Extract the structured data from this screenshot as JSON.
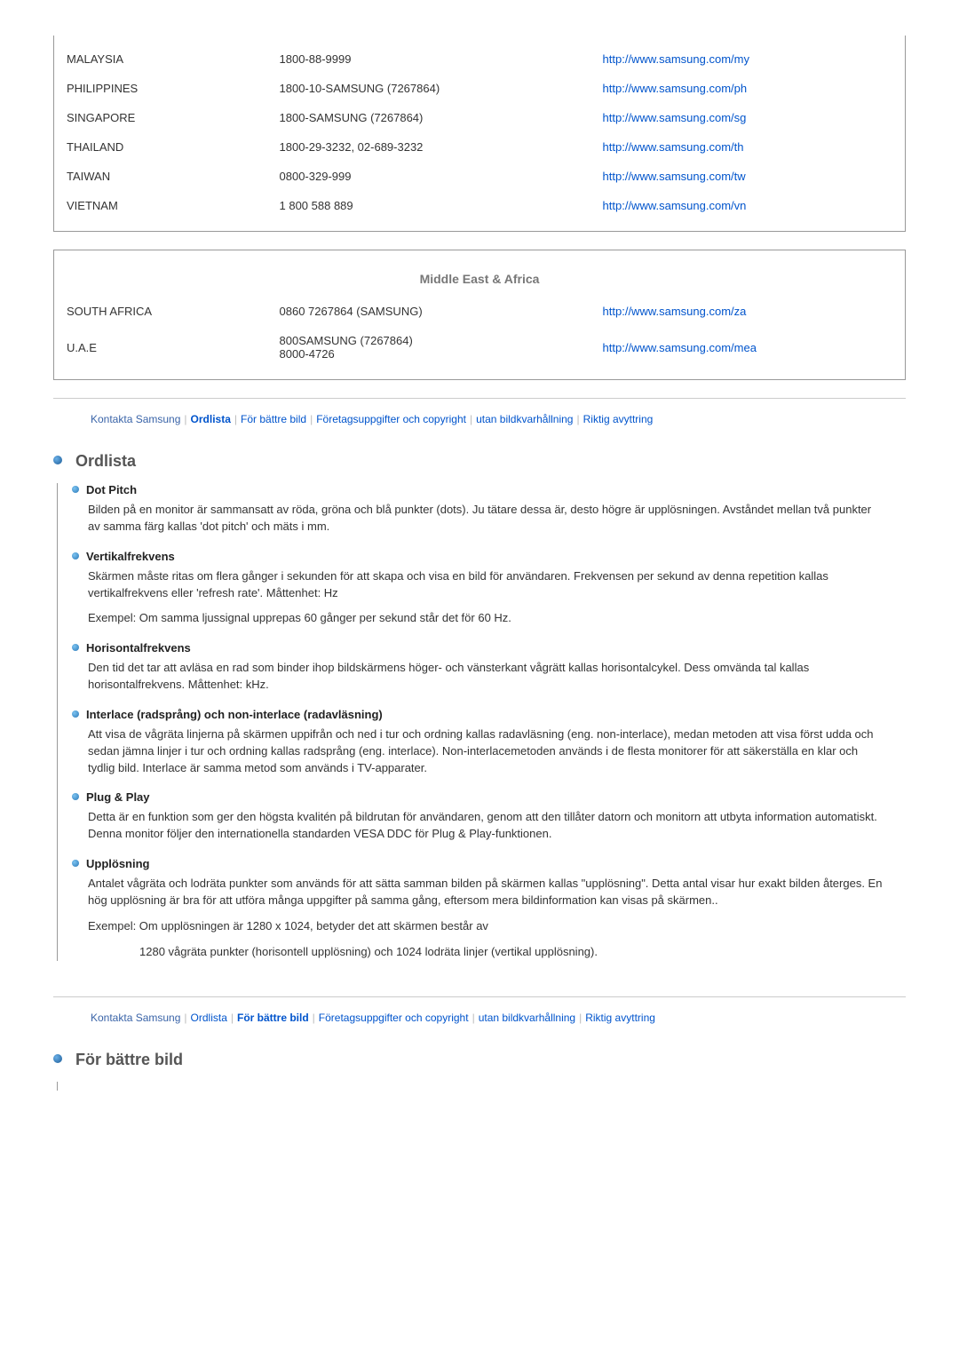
{
  "asia_rows": [
    {
      "country": "MALAYSIA",
      "phone": "1800-88-9999",
      "url": "http://www.samsung.com/my"
    },
    {
      "country": "PHILIPPINES",
      "phone": "1800-10-SAMSUNG (7267864)",
      "url": "http://www.samsung.com/ph"
    },
    {
      "country": "SINGAPORE",
      "phone": "1800-SAMSUNG (7267864)",
      "url": "http://www.samsung.com/sg"
    },
    {
      "country": "THAILAND",
      "phone": "1800-29-3232, 02-689-3232",
      "url": "http://www.samsung.com/th"
    },
    {
      "country": "TAIWAN",
      "phone": "0800-329-999",
      "url": "http://www.samsung.com/tw"
    },
    {
      "country": "VIETNAM",
      "phone": "1 800 588 889",
      "url": "http://www.samsung.com/vn"
    }
  ],
  "mea_header": "Middle East & Africa",
  "mea_rows": [
    {
      "country": "SOUTH AFRICA",
      "phone": "0860 7267864 (SAMSUNG)",
      "url": "http://www.samsung.com/za"
    },
    {
      "country": "U.A.E",
      "phone": "800SAMSUNG (7267864)\n8000-4726",
      "url": "http://www.samsung.com/mea"
    }
  ],
  "nav1": {
    "items": [
      {
        "label": "Kontakta Samsung",
        "cls": "nav-plain"
      },
      {
        "label": "Ordlista",
        "cls": "nav-active"
      },
      {
        "label": "För bättre bild",
        "cls": "nav-normal"
      },
      {
        "label": "Företagsuppgifter och copyright",
        "cls": "nav-normal"
      },
      {
        "label": "utan bildkvarhållning",
        "cls": "nav-normal"
      },
      {
        "label": "Riktig avyttring",
        "cls": "nav-normal"
      }
    ]
  },
  "nav2": {
    "items": [
      {
        "label": "Kontakta Samsung",
        "cls": "nav-plain"
      },
      {
        "label": "Ordlista",
        "cls": "nav-normal"
      },
      {
        "label": "För bättre bild",
        "cls": "nav-active"
      },
      {
        "label": "Företagsuppgifter och copyright",
        "cls": "nav-normal"
      },
      {
        "label": "utan bildkvarhållning",
        "cls": "nav-normal"
      },
      {
        "label": "Riktig avyttring",
        "cls": "nav-normal"
      }
    ]
  },
  "section_ordlista": {
    "title": "Ordlista",
    "terms": [
      {
        "title": "Dot Pitch",
        "paras": [
          "Bilden på en monitor är sammansatt av röda, gröna och blå punkter (dots). Ju tätare dessa är, desto högre är upplösningen. Avståndet mellan två punkter av samma färg kallas 'dot pitch' och mäts i mm."
        ]
      },
      {
        "title": "Vertikalfrekvens",
        "paras": [
          "Skärmen måste ritas om flera gånger i sekunden för att skapa och visa en bild för användaren. Frekvensen per sekund av denna repetition kallas vertikalfrekvens eller 'refresh rate'. Måttenhet: Hz",
          "Exempel: Om samma ljussignal upprepas 60 gånger per sekund står det för 60 Hz."
        ]
      },
      {
        "title": "Horisontalfrekvens",
        "paras": [
          "Den tid det tar att avläsa en rad som binder ihop bildskärmens höger- och vänsterkant vågrätt kallas horisontalcykel. Dess omvända tal kallas horisontalfrekvens. Måttenhet: kHz."
        ]
      },
      {
        "title": "Interlace (radsprång) och non-interlace (radavläsning)",
        "paras": [
          "Att visa de vågräta linjerna på skärmen uppifrån och ned i tur och ordning kallas radavläsning (eng. non-interlace), medan metoden att visa först udda och sedan jämna linjer i tur och ordning kallas radsprång (eng. interlace). Non-interlacemetoden används i de flesta monitorer för att säkerställa en klar och tydlig bild. Interlace är samma metod som används i TV-apparater."
        ]
      },
      {
        "title": "Plug & Play",
        "paras": [
          "Detta är en funktion som ger den högsta kvalitén på bildrutan för användaren, genom att den tillåter datorn och monitorn att utbyta information automatiskt. Denna monitor följer den internationella standarden VESA DDC för Plug & Play-funktionen."
        ]
      },
      {
        "title": "Upplösning",
        "paras": [
          "Antalet vågräta och lodräta punkter som används för att sätta samman bilden på skärmen kallas \"upplösning\". Detta antal visar hur exakt bilden återges. En hög upplösning är bra för att utföra många uppgifter på samma gång, eftersom mera bildinformation kan visas på skärmen..",
          "Exempel: Om upplösningen är 1280 x 1024, betyder det att skärmen består av",
          "1280 vågräta punkter (horisontell upplösning) och 1024 lodräta linjer (vertikal upplösning)."
        ]
      }
    ]
  },
  "section_bild": {
    "title": "För bättre bild"
  }
}
